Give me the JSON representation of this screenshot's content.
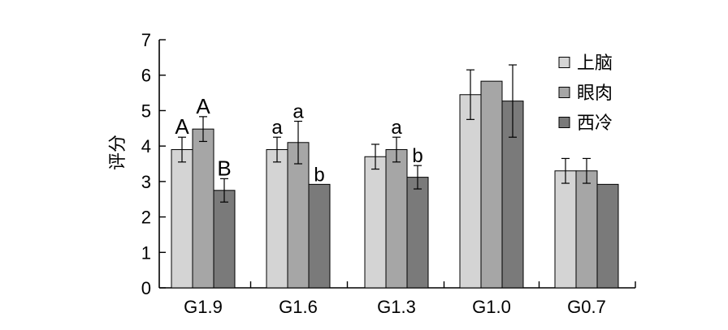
{
  "chart_data": {
    "type": "bar",
    "title": "",
    "xlabel": "",
    "ylabel": "评分",
    "ylim": [
      0,
      7
    ],
    "yticks": [
      0,
      1,
      2,
      3,
      4,
      5,
      6,
      7
    ],
    "categories": [
      "G1.9",
      "G1.6",
      "G1.3",
      "G1.0",
      "G0.7"
    ],
    "legend_position": "top-right",
    "grid": false,
    "series": [
      {
        "name": "上脑",
        "color": "#d4d4d4",
        "values": [
          3.9,
          3.9,
          3.7,
          5.45,
          3.3
        ],
        "errors": [
          0.35,
          0.35,
          0.35,
          0.7,
          0.35
        ],
        "labels": [
          "A",
          "a",
          "",
          "",
          ""
        ]
      },
      {
        "name": "眼肉",
        "color": "#a6a6a6",
        "values": [
          4.48,
          4.1,
          3.9,
          5.83,
          3.3
        ],
        "errors": [
          0.35,
          0.6,
          0.35,
          0,
          0.35
        ],
        "labels": [
          "A",
          "a",
          "a",
          "",
          ""
        ]
      },
      {
        "name": "西冷",
        "color": "#7a7a7a",
        "values": [
          2.75,
          2.92,
          3.12,
          5.27,
          2.92
        ],
        "errors": [
          0.33,
          0,
          0.33,
          1.02,
          0
        ],
        "labels": [
          "B",
          "b",
          "b",
          "",
          ""
        ]
      }
    ]
  }
}
